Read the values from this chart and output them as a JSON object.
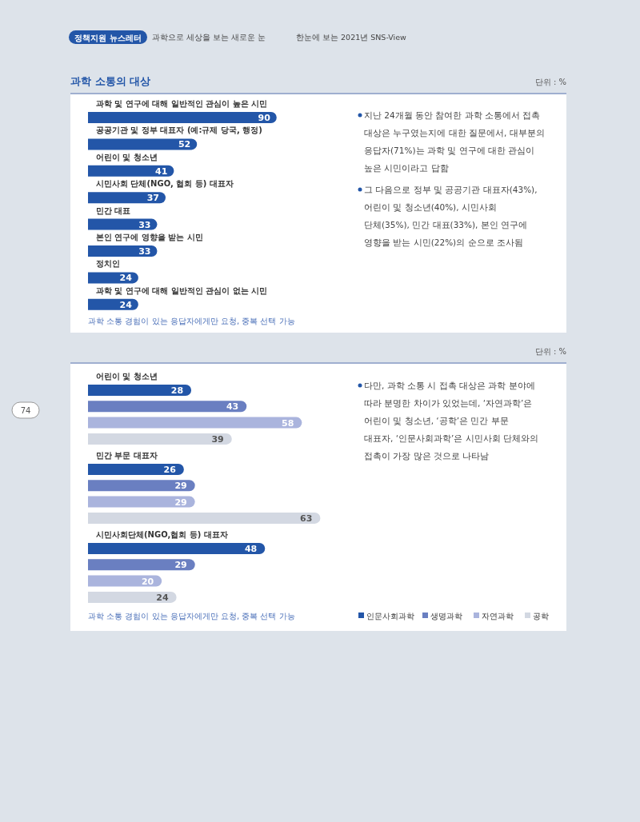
{
  "chart_data": [
    {
      "type": "bar",
      "orientation": "horizontal",
      "title": "과학 소통의 대상",
      "categories": [
        "과학 및 연구에 대해 일반적인 관심이 높은 시민",
        "공공기관 및 정부 대표자 (예:규제 당국, 행정)",
        "어린이 및 청소년",
        "시민사회 단체(NGO, 협회 등) 대표자",
        "민간 대표",
        "본인 연구에 영향을 받는 시민",
        "정치인",
        "과학 및 연구에 대해 일반적인 관심이 없는 시민"
      ],
      "values": [
        90,
        52,
        41,
        37,
        33,
        33,
        24,
        24
      ],
      "color": "#2356a8",
      "data_labels": true,
      "annotations": [
        "단위 : %",
        "과학 소통 경험이 있는 응답자에게만 요청, 중복 선택 가능",
        "지난 24개월 동안 참여한 과학 소통에서 접촉 대상은 누구였는지에 대한 질문에서, 대부분의 응답자(71%)는 과학 및 연구에 대한 관심이 높은 시민이라고 답함",
        "그 다음으로 정부 및 공공기관 대표자(43%), 어린이 및 청소년(40%), 시민사회 단체(35%), 민간 대표(33%), 본인 연구에 영향을 받는 시민(22%)의 순으로 조사됨",
        "정책지원 뉴스레터",
        "과학으로 세상을 보는 새로운 눈",
        "한눈에 보는 2021년 SNS-View",
        "74"
      ]
    },
    {
      "type": "bar",
      "orientation": "horizontal",
      "categories": [
        "어린이 및 청소년",
        "민간 부문 대표자",
        "시민사회단체(NGO,협회 등) 대표자"
      ],
      "series": [
        {
          "name": "인문사회과학",
          "color": "#2356a8",
          "values": [
            28,
            26,
            48
          ]
        },
        {
          "name": "생명과학",
          "color": "#6a7fc1",
          "values": [
            43,
            29,
            29
          ]
        },
        {
          "name": "자연과학",
          "color": "#aab4dd",
          "values": [
            58,
            29,
            20
          ]
        },
        {
          "name": "공학",
          "color": "#d3d8e2",
          "values": [
            39,
            63,
            24
          ]
        }
      ],
      "data_labels": true,
      "legend": "bottom right",
      "annotations": [
        "단위 : %",
        "과학 소통 경험이 있는 응답자에게만 요청, 중복 선택 가능",
        "다만, 과학 소통 시 접촉 대상은 과학 분야에 따라 분명한 차이가 있었는데, ‘자연과학’은 어린이 및 청소년, ‘공학’은 민간 부문 대표자, ‘인문사회과학’은 시민사회 단체와의 접촉이 가장 많은 것으로 나타남"
      ]
    }
  ]
}
